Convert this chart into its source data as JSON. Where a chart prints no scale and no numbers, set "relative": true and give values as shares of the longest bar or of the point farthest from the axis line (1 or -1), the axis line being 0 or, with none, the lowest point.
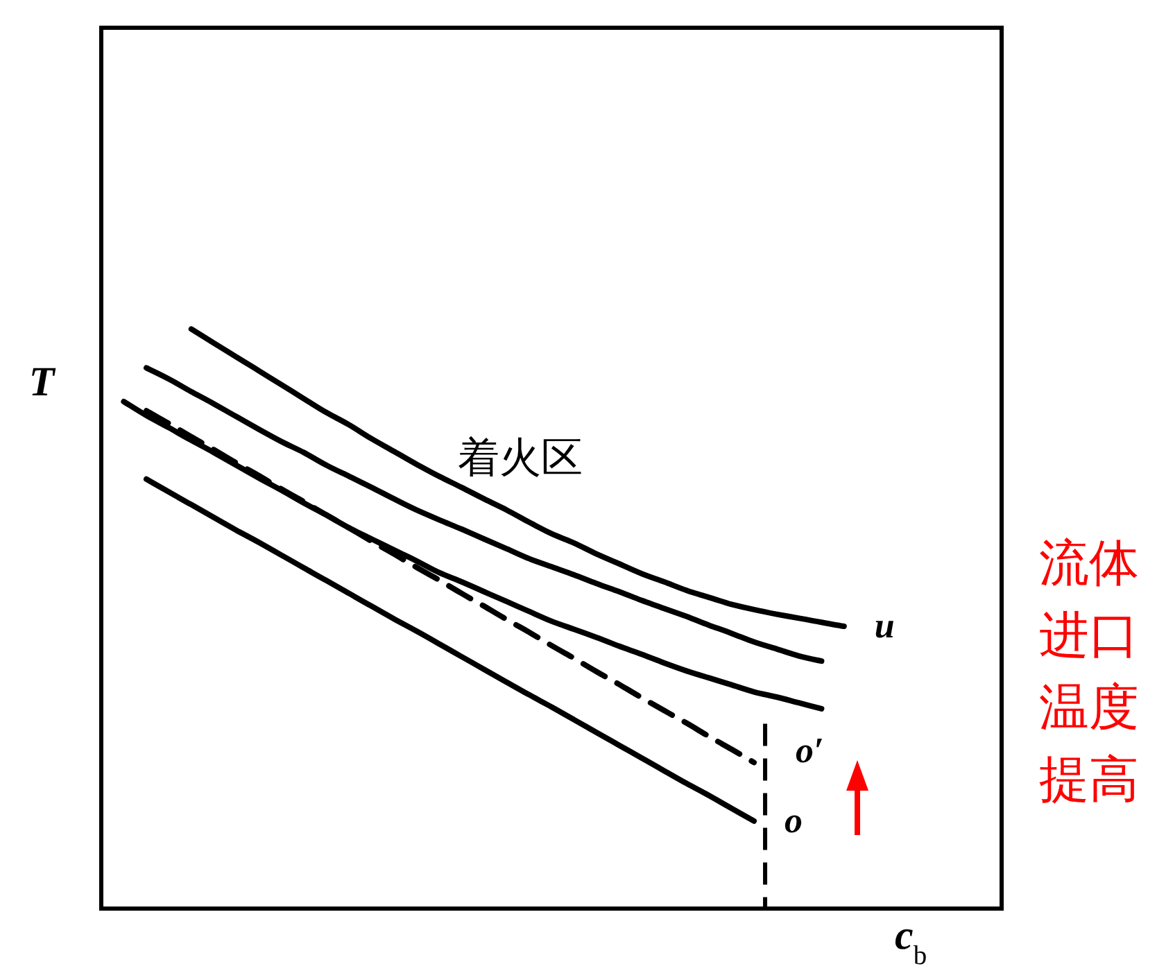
{
  "chart_data": {
    "type": "line",
    "relative": true,
    "xlabel": "c$_{b}$",
    "ylabel": "T",
    "categories": [
      null,
      null,
      null,
      null,
      null,
      null,
      null,
      null,
      null,
      null,
      null,
      null,
      null,
      null,
      null,
      null,
      null,
      null,
      null,
      null,
      null,
      null,
      null,
      null,
      null,
      null,
      null,
      null,
      null,
      null,
      null,
      null,
      null,
      null,
      null,
      null,
      null,
      null,
      null,
      null,
      null
    ],
    "series": [
      {
        "name": "u",
        "color": "#000000",
        "values": [
          null,
          null,
          null,
          null,
          1.0,
          0.976,
          0.952,
          0.928,
          0.904,
          0.88,
          0.856,
          0.835,
          0.811,
          0.789,
          0.767,
          0.746,
          0.727,
          0.707,
          0.688,
          0.667,
          0.647,
          0.631,
          0.612,
          0.595,
          0.578,
          0.564,
          0.549,
          0.537,
          0.525,
          0.516,
          0.508,
          0.501,
          0.494,
          0.487,
          null,
          null,
          null,
          null,
          null,
          null,
          null
        ]
      },
      {
        "color": "#000000",
        "values": [
          null,
          null,
          0.933,
          0.914,
          0.892,
          0.871,
          0.849,
          0.827,
          0.806,
          0.787,
          0.765,
          0.746,
          0.727,
          0.707,
          0.688,
          0.671,
          0.655,
          0.638,
          0.621,
          0.604,
          0.59,
          0.576,
          0.561,
          0.547,
          0.532,
          0.518,
          0.504,
          0.489,
          0.475,
          0.46,
          0.448,
          0.436,
          0.427,
          null,
          null,
          null,
          null,
          null,
          null,
          null,
          null
        ]
      },
      {
        "color": "#000000",
        "values": [
          null,
          0.875,
          0.851,
          0.83,
          0.808,
          0.787,
          0.765,
          0.743,
          0.722,
          0.7,
          0.679,
          0.657,
          0.638,
          0.619,
          0.6,
          0.58,
          0.564,
          0.547,
          0.53,
          0.513,
          0.496,
          0.482,
          0.468,
          0.453,
          0.439,
          0.424,
          0.41,
          0.398,
          0.386,
          0.374,
          0.365,
          0.355,
          0.345,
          null,
          null,
          null,
          null,
          null,
          null,
          null,
          null
        ]
      },
      {
        "name": "o′",
        "color": "#000000",
        "line_style": "dashed",
        "values": [
          null,
          null,
          0.859,
          0.837,
          0.814,
          0.792,
          0.769,
          0.747,
          0.724,
          0.702,
          0.679,
          0.657,
          0.634,
          0.612,
          0.589,
          0.567,
          0.544,
          0.522,
          0.499,
          0.477,
          0.454,
          0.432,
          0.409,
          0.387,
          0.364,
          0.342,
          0.32,
          0.297,
          0.275,
          0.252,
          null,
          null,
          null,
          null,
          null,
          null,
          null,
          null,
          null,
          null,
          null
        ]
      },
      {
        "name": "o",
        "color": "#000000",
        "values": [
          null,
          null,
          0.741,
          0.719,
          0.697,
          0.675,
          0.653,
          0.632,
          0.61,
          0.588,
          0.566,
          0.544,
          0.522,
          0.5,
          0.479,
          0.457,
          0.435,
          0.413,
          0.391,
          0.369,
          0.348,
          0.326,
          0.304,
          0.282,
          0.26,
          0.238,
          0.216,
          0.195,
          0.173,
          0.151,
          null,
          null,
          null,
          null,
          null,
          null,
          null,
          null,
          null,
          null,
          null
        ]
      }
    ],
    "annotations": [
      "着火区",
      "流体进口温度提高"
    ]
  }
}
